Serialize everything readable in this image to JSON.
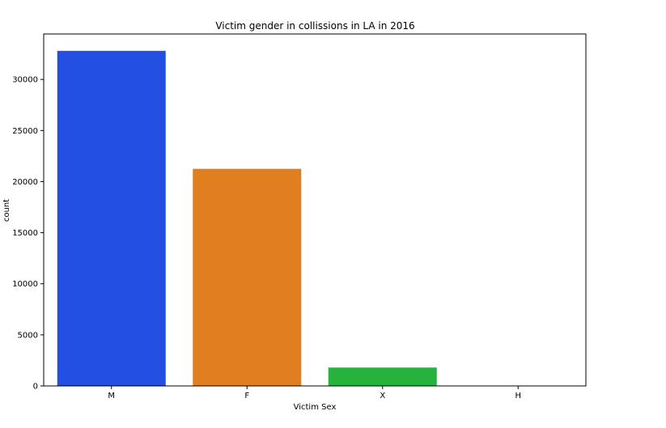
{
  "chart_data": {
    "type": "bar",
    "title": "Victim gender in collissions in LA in 2016",
    "xlabel": "Victim Sex",
    "ylabel": "count",
    "categories": [
      "M",
      "F",
      "X",
      "H"
    ],
    "values": [
      32800,
      21250,
      1800,
      3
    ],
    "colors": [
      "#2350e3",
      "#e17f20",
      "#26b33d",
      "#d62728"
    ],
    "ylim": [
      0,
      34450
    ],
    "yticks": [
      0,
      5000,
      10000,
      15000,
      20000,
      25000,
      30000
    ],
    "grid": false,
    "legend": "none"
  }
}
